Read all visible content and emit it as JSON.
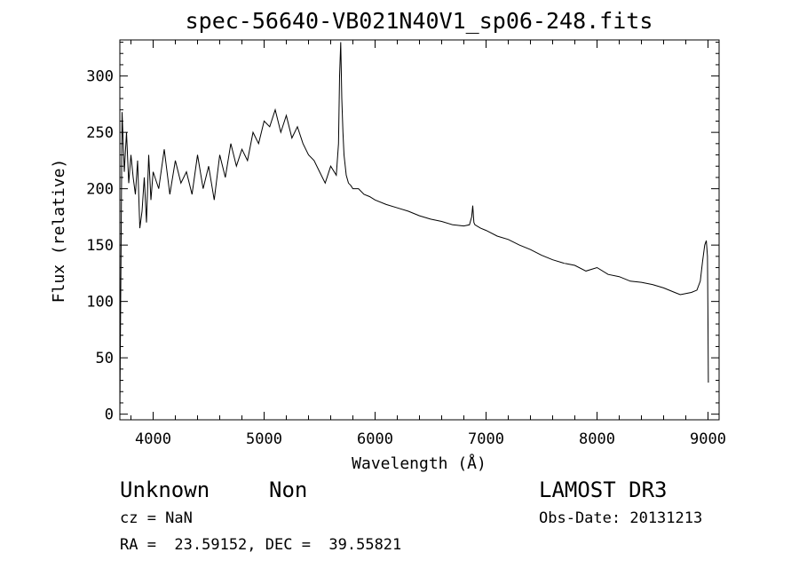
{
  "chart_data": {
    "type": "line",
    "title": "spec-56640-VB021N40V1_sp06-248.fits",
    "xlabel": "Wavelength (Å)",
    "ylabel": "Flux (relative)",
    "xlim": [
      3700,
      9100
    ],
    "ylim": [
      -5,
      332
    ],
    "xticks": [
      4000,
      5000,
      6000,
      7000,
      8000,
      9000
    ],
    "yticks": [
      0,
      50,
      100,
      150,
      200,
      250,
      300
    ],
    "grid": false,
    "series": [
      {
        "x": [
          3700,
          3720,
          3740,
          3760,
          3780,
          3800,
          3820,
          3840,
          3860,
          3880,
          3900,
          3920,
          3940,
          3960,
          3980,
          4000,
          4050,
          4100,
          4150,
          4200,
          4250,
          4300,
          4350,
          4400,
          4450,
          4500,
          4550,
          4600,
          4650,
          4700,
          4750,
          4800,
          4850,
          4900,
          4950,
          5000,
          5050,
          5100,
          5150,
          5200,
          5250,
          5300,
          5350,
          5400,
          5450,
          5500,
          5550,
          5600,
          5650,
          5670,
          5680,
          5690,
          5700,
          5710,
          5720,
          5740,
          5760,
          5780,
          5800,
          5850,
          5900,
          5950,
          6000,
          6100,
          6200,
          6300,
          6400,
          6500,
          6600,
          6700,
          6800,
          6850,
          6870,
          6880,
          6890,
          6900,
          6950,
          7000,
          7100,
          7200,
          7300,
          7400,
          7500,
          7600,
          7700,
          7800,
          7900,
          8000,
          8100,
          8200,
          8300,
          8400,
          8500,
          8600,
          8700,
          8750,
          8800,
          8850,
          8900,
          8930,
          8950,
          8970,
          8985,
          8995,
          9000,
          9003
        ],
        "y": [
          0,
          268,
          215,
          250,
          205,
          230,
          210,
          195,
          225,
          165,
          180,
          210,
          170,
          230,
          190,
          215,
          200,
          235,
          195,
          225,
          205,
          215,
          195,
          230,
          200,
          220,
          190,
          230,
          210,
          240,
          220,
          235,
          225,
          250,
          240,
          260,
          255,
          270,
          250,
          265,
          245,
          255,
          240,
          230,
          225,
          215,
          205,
          220,
          212,
          240,
          300,
          330,
          280,
          250,
          230,
          212,
          205,
          203,
          200,
          200,
          195,
          193,
          190,
          186,
          183,
          180,
          176,
          173,
          171,
          168,
          167,
          168,
          175,
          185,
          170,
          168,
          165,
          163,
          158,
          155,
          150,
          146,
          141,
          137,
          134,
          132,
          127,
          130,
          124,
          122,
          118,
          117,
          115,
          112,
          108,
          106,
          107,
          108,
          110,
          118,
          135,
          150,
          154,
          140,
          80,
          28
        ]
      }
    ]
  },
  "info": {
    "class_label": "Unknown",
    "subclass_label": "Non",
    "survey_label": "LAMOST DR3",
    "cz_text": "cz = NaN",
    "obsdate_text": "Obs-Date: 20131213",
    "radec_text": "RA =  23.59152, DEC =  39.55821"
  }
}
